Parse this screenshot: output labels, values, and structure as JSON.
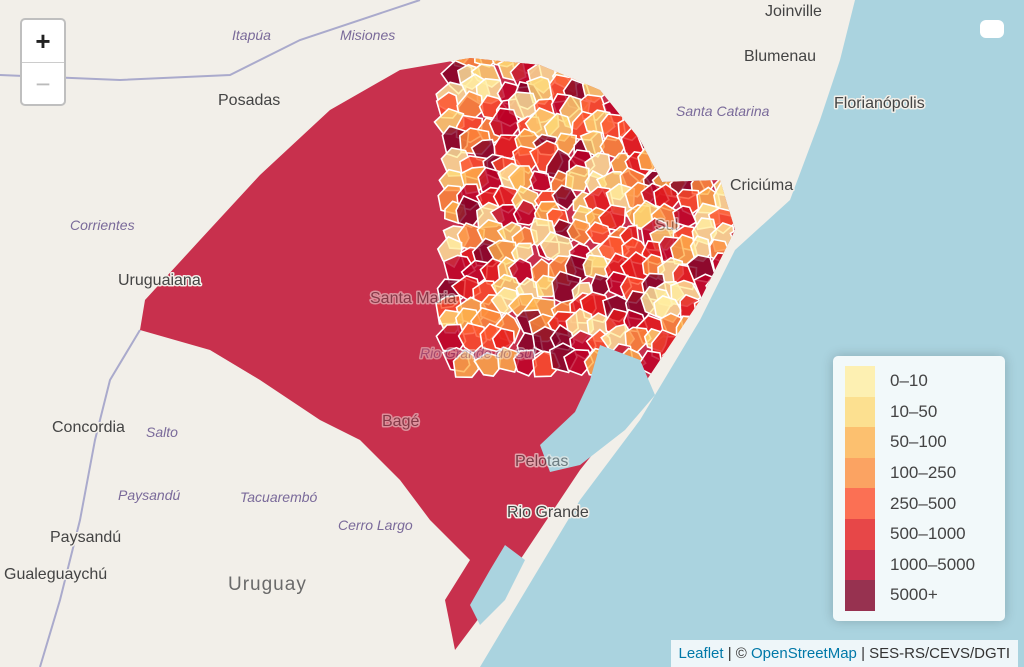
{
  "zoom_controls": {
    "zoom_in": "+",
    "zoom_out": "−"
  },
  "cities": [
    "Joinville",
    "Blumenau",
    "Florianópolis",
    "Criciúma",
    "Posadas",
    "Uruguaiana",
    "Concordia",
    "Paysandú",
    "Gualeguaychú",
    "Santa Maria",
    "Bagé",
    "Pelotas",
    "Rio Grande",
    "Sul"
  ],
  "regions": [
    "Itapúa",
    "Misiones",
    "Santa Catarina",
    "Corrientes",
    "Salto",
    "Paysandú",
    "Tacuarembó",
    "Cerro Largo",
    "Rio Grande do Sul"
  ],
  "country": "Uruguay",
  "legend": {
    "items": [
      {
        "label": "0–10",
        "color": "#ffeda0"
      },
      {
        "label": "10–50",
        "color": "#fed976"
      },
      {
        "label": "50–100",
        "color": "#feb24c"
      },
      {
        "label": "100–250",
        "color": "#fd8d3c"
      },
      {
        "label": "250–500",
        "color": "#fc4e2a"
      },
      {
        "label": "500–1000",
        "color": "#e31a1c"
      },
      {
        "label": "1000–5000",
        "color": "#bd0026"
      },
      {
        "label": "5000+",
        "color": "#800026"
      }
    ]
  },
  "attribution": [
    {
      "text": "Leaflet",
      "link": true
    },
    {
      "text": " | © ",
      "link": false
    },
    {
      "text": "OpenStreetMap",
      "link": true
    },
    {
      "text": " | SES-RS/CEVS/DGTI",
      "link": false
    }
  ]
}
